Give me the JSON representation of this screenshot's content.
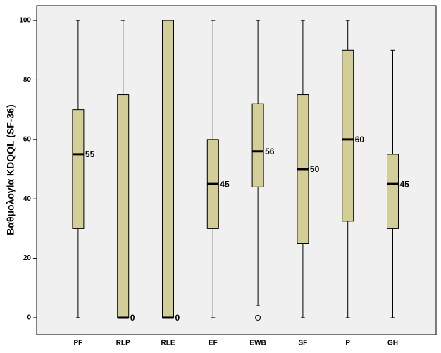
{
  "chart_data": {
    "type": "box",
    "y_label": "Βαθμολογία KDQQL (SF-36)",
    "categories": [
      "PF",
      "RLP",
      "RLE",
      "EF",
      "EWB",
      "SF",
      "P",
      "GH"
    ],
    "min": [
      0,
      0,
      0,
      0,
      4,
      0,
      0,
      0
    ],
    "q1": [
      30,
      0,
      0,
      30,
      44,
      25,
      32.5,
      30
    ],
    "median": [
      55,
      0,
      0,
      45,
      56,
      50,
      60,
      45
    ],
    "q3": [
      70,
      75,
      100,
      60,
      72,
      75,
      90,
      55
    ],
    "max": [
      100,
      100,
      100,
      100,
      100,
      100,
      100,
      90
    ],
    "outliers": [
      [],
      [],
      [],
      [],
      [
        0
      ],
      [],
      [],
      []
    ],
    "color": "#d3ce97",
    "ylim": [
      -5.7,
      105
    ],
    "yticks": [
      0,
      20,
      40,
      60,
      80,
      100
    ],
    "grid": false
  }
}
